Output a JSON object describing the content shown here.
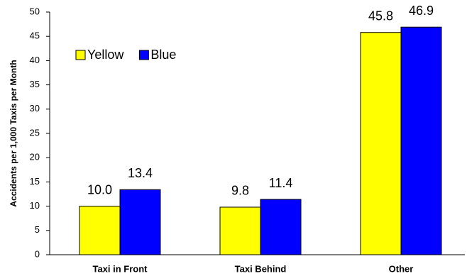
{
  "chart_data": {
    "type": "bar",
    "y_label": "Accidents per 1,000 Taxis per Month",
    "categories": [
      "Taxi in Front",
      "Taxi Behind",
      "Other"
    ],
    "series": [
      {
        "name": "Yellow",
        "color": "#ffff00",
        "values": [
          10.0,
          9.8,
          45.8
        ],
        "value_labels": [
          "10.0",
          "9.8",
          "45.8"
        ]
      },
      {
        "name": "Blue",
        "color": "#0000ff",
        "values": [
          13.4,
          11.4,
          46.9
        ],
        "value_labels": [
          "13.4",
          "11.4",
          "46.9"
        ]
      }
    ],
    "ylim": [
      0,
      50
    ],
    "yticks": [
      0,
      5,
      10,
      15,
      20,
      25,
      30,
      35,
      40,
      45,
      50
    ],
    "grid": false,
    "legend": "top-left"
  }
}
